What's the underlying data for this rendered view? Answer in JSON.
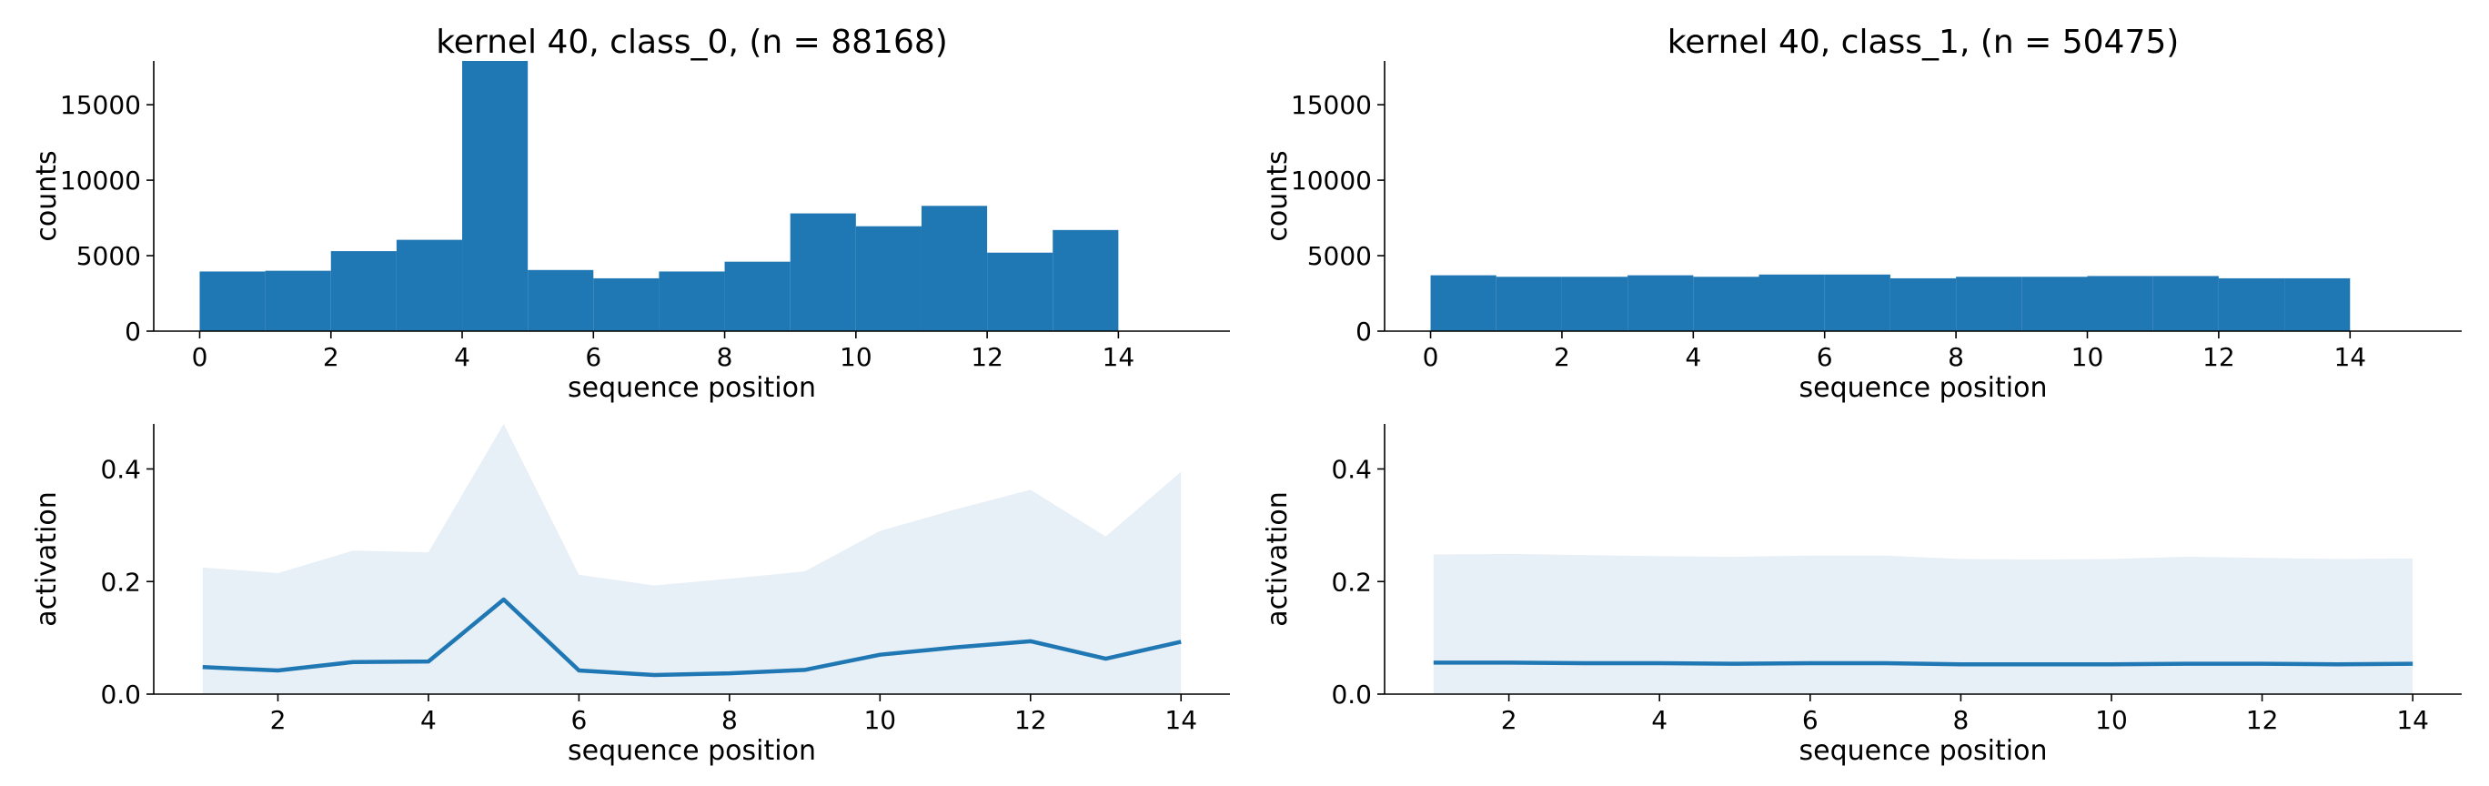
{
  "colors": {
    "bar": "#1f77b4",
    "line": "#1f77b4",
    "band": "#e7eff7"
  },
  "chart_data": [
    {
      "type": "bar",
      "title": "kernel 40, class_0, (n = 88168)",
      "xlabel": "sequence position",
      "ylabel": "counts",
      "xlim": [
        -0.7,
        15.7
      ],
      "ylim": [
        0,
        17900
      ],
      "xticks": [
        0,
        2,
        4,
        6,
        8,
        10,
        12,
        14
      ],
      "yticks": [
        0,
        5000,
        10000,
        15000
      ],
      "bin_edges": [
        0,
        1,
        2,
        3,
        4,
        5,
        6,
        7,
        8,
        9,
        10,
        11,
        12,
        13,
        14
      ],
      "values": [
        3950,
        4000,
        5300,
        6050,
        17900,
        4050,
        3500,
        3950,
        4600,
        7800,
        6950,
        8300,
        5200,
        6700
      ]
    },
    {
      "type": "bar",
      "title": "kernel 40, class_1, (n = 50475)",
      "xlabel": "sequence position",
      "ylabel": "counts",
      "xlim": [
        -0.7,
        15.7
      ],
      "ylim": [
        0,
        17900
      ],
      "xticks": [
        0,
        2,
        4,
        6,
        8,
        10,
        12,
        14
      ],
      "yticks": [
        0,
        5000,
        10000,
        15000
      ],
      "bin_edges": [
        0,
        1,
        2,
        3,
        4,
        5,
        6,
        7,
        8,
        9,
        10,
        11,
        12,
        13,
        14
      ],
      "values": [
        3700,
        3600,
        3600,
        3700,
        3600,
        3750,
        3750,
        3500,
        3600,
        3600,
        3650,
        3650,
        3500,
        3500
      ]
    },
    {
      "type": "line",
      "title": "",
      "xlabel": "sequence position",
      "ylabel": "activation",
      "xlim": [
        0.35,
        14.65
      ],
      "ylim": [
        0,
        0.48
      ],
      "xticks": [
        2,
        4,
        6,
        8,
        10,
        12,
        14
      ],
      "yticks": [
        0.0,
        0.2,
        0.4
      ],
      "ytick_labels": [
        "0.0",
        "0.2",
        "0.4"
      ],
      "x": [
        1,
        2,
        3,
        4,
        5,
        6,
        7,
        8,
        9,
        10,
        11,
        12,
        13,
        14
      ],
      "y": [
        0.048,
        0.042,
        0.057,
        0.058,
        0.168,
        0.042,
        0.034,
        0.037,
        0.043,
        0.07,
        0.083,
        0.094,
        0.063,
        0.093
      ],
      "band_lower": [
        0,
        0,
        0,
        0,
        0,
        0,
        0,
        0,
        0,
        0,
        0,
        0,
        0,
        0
      ],
      "band_upper": [
        0.225,
        0.215,
        0.255,
        0.252,
        0.48,
        0.212,
        0.193,
        0.205,
        0.218,
        0.29,
        0.328,
        0.363,
        0.28,
        0.395
      ]
    },
    {
      "type": "line",
      "title": "",
      "xlabel": "sequence position",
      "ylabel": "activation",
      "xlim": [
        0.35,
        14.65
      ],
      "ylim": [
        0,
        0.48
      ],
      "xticks": [
        2,
        4,
        6,
        8,
        10,
        12,
        14
      ],
      "yticks": [
        0.0,
        0.2,
        0.4
      ],
      "ytick_labels": [
        "0.0",
        "0.2",
        "0.4"
      ],
      "x": [
        1,
        2,
        3,
        4,
        5,
        6,
        7,
        8,
        9,
        10,
        11,
        12,
        13,
        14
      ],
      "y": [
        0.056,
        0.056,
        0.055,
        0.055,
        0.054,
        0.055,
        0.055,
        0.053,
        0.053,
        0.053,
        0.054,
        0.054,
        0.053,
        0.054
      ],
      "band_lower": [
        0,
        0,
        0,
        0,
        0,
        0,
        0,
        0,
        0,
        0,
        0,
        0,
        0,
        0
      ],
      "band_upper": [
        0.248,
        0.249,
        0.247,
        0.245,
        0.244,
        0.246,
        0.246,
        0.24,
        0.239,
        0.24,
        0.244,
        0.242,
        0.24,
        0.241
      ]
    }
  ]
}
